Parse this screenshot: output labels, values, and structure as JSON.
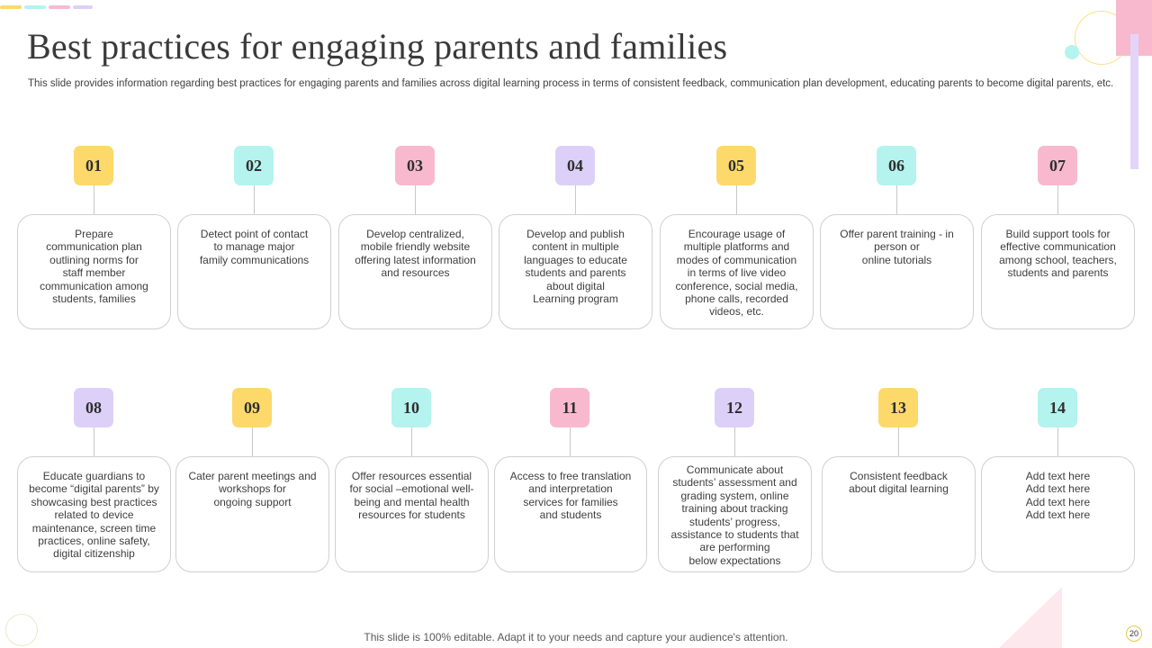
{
  "slide": {
    "title": "Best practices for engaging parents and families",
    "subtitle": "This slide provides information regarding best practices for engaging parents and families across digital learning process in terms of consistent feedback, communication plan development, educating parents to become digital parents, etc.",
    "footer": "This slide is 100% editable. Adapt it to your needs and capture your audience's attention.",
    "page_number": "20"
  },
  "colors": {
    "yellow": "#fcd96a",
    "aqua": "#b4f3ee",
    "pink": "#f8b9cf",
    "lavender": "#ddd0f8"
  },
  "practices": [
    {
      "number": "01",
      "color": "yellow",
      "text": "Prepare\ncommunication plan\noutlining norms for\nstaff member\ncommunication among\nstudents, families"
    },
    {
      "number": "02",
      "color": "aqua",
      "text": "Detect point of contact\nto manage major\nfamily communications"
    },
    {
      "number": "03",
      "color": "pink",
      "text": "Develop centralized,\nmobile friendly website\noffering latest information\nand resources"
    },
    {
      "number": "04",
      "color": "lavender",
      "text": "Develop and publish\ncontent in multiple\nlanguages to educate\nstudents and parents\nabout digital\nLearning program"
    },
    {
      "number": "05",
      "color": "yellow",
      "text": "Encourage usage of\nmultiple platforms and\nmodes of communication\nin terms of live video\nconference, social media,\nphone calls, recorded\nvideos, etc."
    },
    {
      "number": "06",
      "color": "aqua",
      "text": "Offer parent training - in\nperson or\nonline tutorials"
    },
    {
      "number": "07",
      "color": "pink",
      "text": "Build support tools for\neffective communication\namong school, teachers,\nstudents and parents"
    },
    {
      "number": "08",
      "color": "lavender",
      "text": "Educate guardians to\nbecome “digital parents” by\nshowcasing best practices\nrelated to device\nmaintenance, screen time\npractices, online safety,\ndigital citizenship"
    },
    {
      "number": "09",
      "color": "yellow",
      "text": "Cater parent meetings and\nworkshops for\nongoing support"
    },
    {
      "number": "10",
      "color": "aqua",
      "text": "Offer resources essential\nfor social –emotional well-\nbeing and mental health\nresources for students"
    },
    {
      "number": "11",
      "color": "pink",
      "text": "Access to free translation\nand interpretation\nservices for families\nand students"
    },
    {
      "number": "12",
      "color": "lavender",
      "text": "Communicate about\nstudents’ assessment and\ngrading system, online\ntraining about tracking\nstudents’ progress,\nassistance to students that\nare performing\nbelow expectations"
    },
    {
      "number": "13",
      "color": "yellow",
      "text": "Consistent feedback\nabout digital learning"
    },
    {
      "number": "14",
      "color": "aqua",
      "text": "Add text here\nAdd text here\nAdd text here\nAdd text here"
    }
  ]
}
